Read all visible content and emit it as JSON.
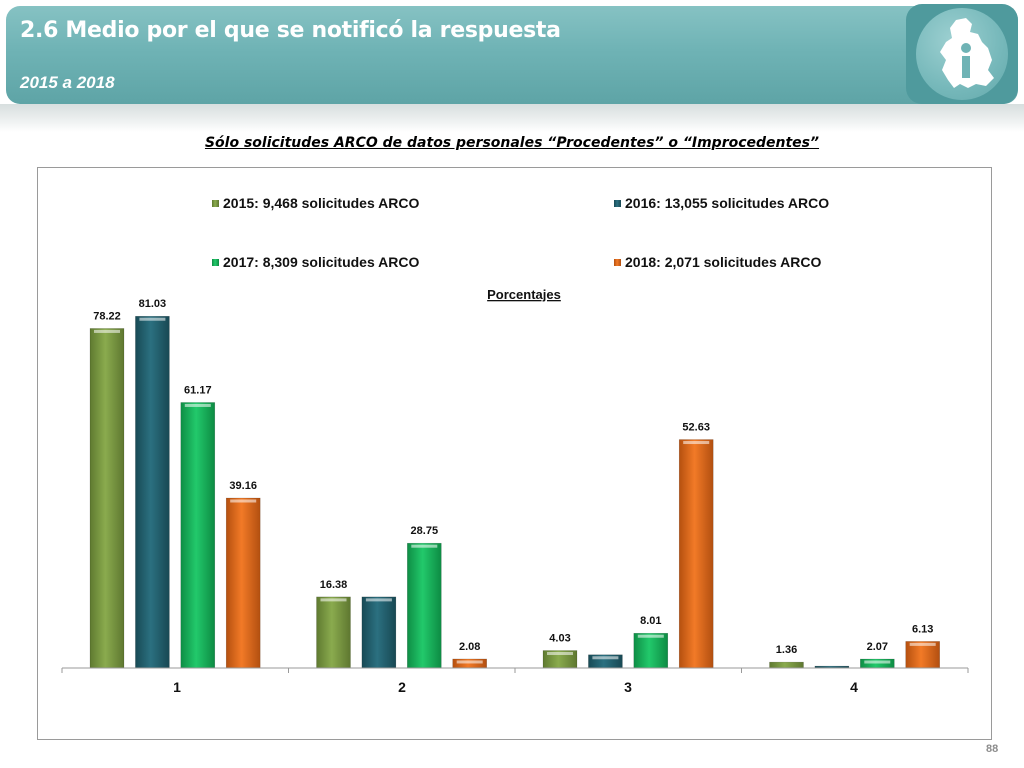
{
  "header": {
    "title": "2.6 Medio por el que se notificó la respuesta",
    "subtitle": "2015 a 2018"
  },
  "logo": {
    "icon": "cdmx-map-info-icon"
  },
  "chart_heading": "Sólo solicitudes ARCO de datos personales “Procedentes” o “Improcedentes”",
  "page_number": "88",
  "colors": {
    "header": "#6fb3b5",
    "series": [
      "#77963f",
      "#215e6b",
      "#16b35a",
      "#e0681b"
    ]
  },
  "chart_data": {
    "type": "bar",
    "title": "Porcentajes",
    "categories": [
      "1",
      "2",
      "3",
      "4"
    ],
    "series": [
      {
        "name": "2015: 9,468 solicitudes ARCO",
        "values": [
          78.22,
          16.38,
          4.03,
          1.36
        ],
        "labels": [
          "78.22",
          "16.38",
          "4.03",
          "1.36"
        ]
      },
      {
        "name": "2016: 13,055 solicitudes ARCO",
        "values": [
          81.03,
          16.38,
          3.05,
          0.44
        ],
        "labels": [
          "81.03",
          "",
          "",
          ""
        ]
      },
      {
        "name": "2017: 8,309 solicitudes ARCO",
        "values": [
          61.17,
          28.75,
          8.01,
          2.07
        ],
        "labels": [
          "61.17",
          "28.75",
          "8.01",
          "2.07"
        ]
      },
      {
        "name": "2018: 2,071 solicitudes ARCO",
        "values": [
          39.16,
          2.08,
          52.63,
          6.13
        ],
        "labels": [
          "39.16",
          "2.08",
          "52.63",
          "6.13"
        ]
      }
    ],
    "ylim": [
      0,
      85
    ],
    "legend_position": "top",
    "grid": false
  }
}
